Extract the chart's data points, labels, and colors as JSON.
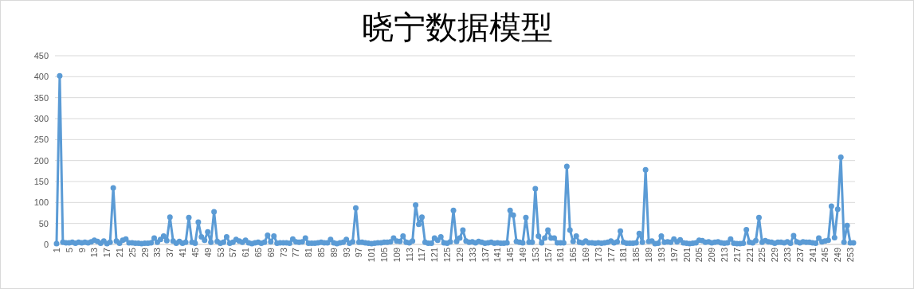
{
  "chart_data": {
    "type": "line",
    "title": "晓宁数据模型",
    "categories": [
      "1",
      null,
      null,
      null,
      "5",
      null,
      null,
      null,
      "9",
      null,
      null,
      null,
      "13",
      null,
      null,
      null,
      "17",
      null,
      null,
      null,
      "21",
      null,
      null,
      null,
      "25",
      null,
      null,
      null,
      "29",
      null,
      null,
      null,
      "33",
      null,
      null,
      null,
      "37",
      null,
      null,
      null,
      "41",
      null,
      null,
      null,
      "45",
      null,
      null,
      null,
      "49",
      null,
      null,
      null,
      "53",
      null,
      null,
      null,
      "57",
      null,
      null,
      null,
      "61",
      null,
      null,
      null,
      "65",
      null,
      null,
      null,
      "69",
      null,
      null,
      null,
      "73",
      null,
      null,
      null,
      "77",
      null,
      null,
      null,
      "81",
      null,
      null,
      null,
      "85",
      null,
      null,
      null,
      "89",
      null,
      null,
      null,
      "93",
      null,
      null,
      null,
      "97",
      null,
      null,
      null,
      "101",
      null,
      null,
      null,
      "105",
      null,
      null,
      null,
      "109",
      null,
      null,
      null,
      "113",
      null,
      null,
      null,
      "117",
      null,
      null,
      null,
      "121",
      null,
      null,
      null,
      "125",
      null,
      null,
      null,
      "129",
      null,
      null,
      null,
      "133",
      null,
      null,
      null,
      "137",
      null,
      null,
      null,
      "141",
      null,
      null,
      null,
      "145",
      null,
      null,
      null,
      "149",
      null,
      null,
      null,
      "153",
      null,
      null,
      null,
      "157",
      null,
      null,
      null,
      "161",
      null,
      null,
      null,
      "165",
      null,
      null,
      null,
      "169",
      null,
      null,
      null,
      "173",
      null,
      null,
      null,
      "177",
      null,
      null,
      null,
      "181",
      null,
      null,
      null,
      "185",
      null,
      null,
      null,
      "189",
      null,
      null,
      null,
      "193",
      null,
      null,
      null,
      "197",
      null,
      null,
      null,
      "201",
      null,
      null,
      null,
      "205",
      null,
      null,
      null,
      "209",
      null,
      null,
      null,
      "213",
      null,
      null,
      null,
      "217",
      null,
      null,
      null,
      "221",
      null,
      null,
      null,
      "225",
      null,
      null,
      null,
      "229",
      null,
      null,
      null,
      "233",
      null,
      null,
      null,
      "237",
      null,
      null,
      null,
      "241",
      null,
      null,
      null,
      "245",
      null,
      null,
      null,
      "249",
      null,
      null,
      null,
      "253",
      null
    ],
    "series": [
      {
        "color": "#5b9bd5",
        "values": [
          2,
          402,
          5,
          4,
          4,
          5,
          3,
          5,
          4,
          5,
          4,
          6,
          10,
          7,
          3,
          8,
          2,
          5,
          135,
          8,
          3,
          10,
          13,
          4,
          4,
          3,
          3,
          2,
          3,
          3,
          4,
          15,
          5,
          12,
          20,
          9,
          65,
          8,
          3,
          7,
          3,
          5,
          64,
          5,
          3,
          53,
          18,
          10,
          30,
          5,
          78,
          7,
          3,
          5,
          18,
          3,
          5,
          12,
          8,
          5,
          10,
          4,
          2,
          4,
          5,
          3,
          5,
          22,
          6,
          20,
          3,
          4,
          4,
          4,
          3,
          13,
          6,
          5,
          6,
          15,
          3,
          3,
          3,
          4,
          5,
          4,
          4,
          12,
          4,
          2,
          4,
          5,
          12,
          3,
          6,
          87,
          5,
          5,
          4,
          3,
          2,
          3,
          4,
          4,
          5,
          5,
          6,
          15,
          8,
          7,
          20,
          5,
          4,
          8,
          94,
          48,
          65,
          5,
          3,
          3,
          15,
          10,
          18,
          4,
          3,
          6,
          81,
          7,
          15,
          34,
          8,
          5,
          6,
          4,
          7,
          5,
          3,
          4,
          5,
          3,
          4,
          3,
          3,
          4,
          81,
          70,
          7,
          5,
          4,
          64,
          5,
          5,
          133,
          20,
          4,
          15,
          34,
          15,
          15,
          4,
          4,
          4,
          186,
          34,
          7,
          20,
          5,
          4,
          8,
          4,
          4,
          3,
          4,
          3,
          4,
          5,
          8,
          4,
          6,
          32,
          5,
          3,
          3,
          3,
          4,
          26,
          5,
          178,
          7,
          8,
          2,
          3,
          20,
          5,
          6,
          5,
          13,
          6,
          11,
          4,
          3,
          2,
          3,
          4,
          10,
          9,
          5,
          6,
          4,
          5,
          6,
          4,
          3,
          4,
          13,
          3,
          2,
          2,
          3,
          35,
          5,
          4,
          9,
          64,
          5,
          9,
          6,
          5,
          3,
          5,
          5,
          4,
          6,
          3,
          21,
          6,
          4,
          6,
          5,
          5,
          4,
          3,
          15,
          6,
          8,
          10,
          91,
          16,
          84,
          208,
          5,
          45,
          4,
          4
        ]
      }
    ],
    "ylim": [
      0,
      450
    ],
    "yticks": [
      0,
      50,
      100,
      150,
      200,
      250,
      300,
      350,
      400,
      450
    ],
    "grid": "y",
    "marker": "circle",
    "line_style": "solid"
  }
}
